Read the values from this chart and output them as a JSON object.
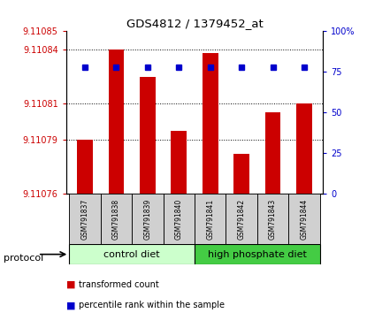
{
  "title": "GDS4812 / 1379452_at",
  "samples": [
    "GSM791837",
    "GSM791838",
    "GSM791839",
    "GSM791840",
    "GSM791841",
    "GSM791842",
    "GSM791843",
    "GSM791844"
  ],
  "bar_values": [
    9.11079,
    9.11084,
    9.110825,
    9.110795,
    9.110838,
    9.110782,
    9.110805,
    9.11081
  ],
  "percentile_values": [
    78,
    78,
    78,
    78,
    78,
    78,
    78,
    78
  ],
  "ylim_left": [
    9.11076,
    9.11085
  ],
  "ylim_right": [
    0,
    100
  ],
  "yticks_left": [
    9.11076,
    9.11079,
    9.11081,
    9.11084,
    9.11085
  ],
  "yticks_right": [
    0,
    25,
    50,
    75,
    100
  ],
  "ytick_labels_left": [
    "9.11076",
    "9.11079",
    "9.11081",
    "9.11084",
    "9.11085"
  ],
  "ytick_labels_right": [
    "0",
    "25",
    "50",
    "75",
    "100%"
  ],
  "bar_color": "#cc0000",
  "percentile_color": "#0000cc",
  "group1_label": "control diet",
  "group2_label": "high phosphate diet",
  "group1_color": "#ccffcc",
  "group2_color": "#44cc44",
  "group1_count": 4,
  "group2_count": 4,
  "protocol_label": "protocol",
  "legend_bar_label": "transformed count",
  "legend_pct_label": "percentile rank within the sample",
  "dotted_yticks": [
    9.11079,
    9.11081,
    9.11084
  ],
  "label_area_color": "#d0d0d0",
  "tick_color_left": "#cc0000",
  "tick_color_right": "#0000cc"
}
